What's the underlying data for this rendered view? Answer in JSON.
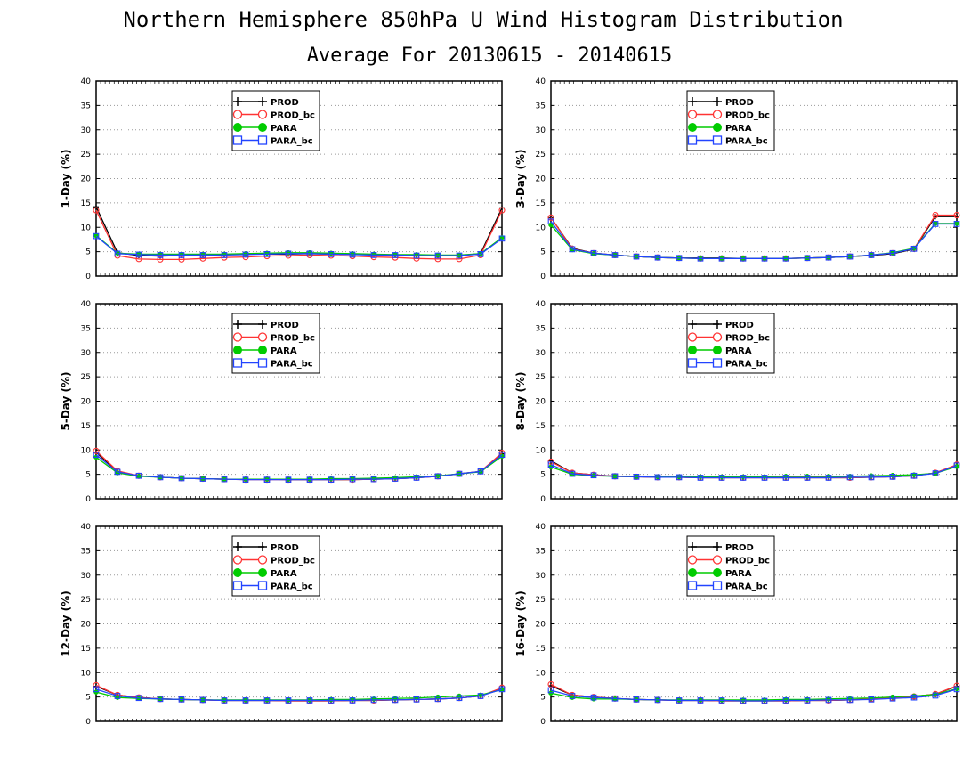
{
  "figure": {
    "title": "Northern Hemisphere 850hPa U Wind Histogram Distribution",
    "subtitle": "Average For 20130615 - 20140615"
  },
  "chart_data": [
    {
      "type": "line",
      "ylabel": "1-Day (%)",
      "ylim": [
        0,
        40
      ],
      "yticks": [
        0,
        5,
        10,
        15,
        20,
        25,
        30,
        35,
        40
      ],
      "grid": true,
      "legend": "top-left inset",
      "series": [
        {
          "name": "PROD",
          "color": "#000000",
          "marker": "plus",
          "values": [
            14.2,
            4.8,
            4.2,
            4.1,
            4.2,
            4.3,
            4.4,
            4.5,
            4.5,
            4.5,
            4.6,
            4.5,
            4.5,
            4.4,
            4.3,
            4.3,
            4.2,
            4.2,
            4.6,
            14.0
          ]
        },
        {
          "name": "PROD_bc",
          "color": "#ff3333",
          "marker": "circle",
          "values": [
            13.5,
            4.2,
            3.5,
            3.4,
            3.4,
            3.6,
            3.8,
            3.9,
            4.1,
            4.2,
            4.3,
            4.2,
            4.1,
            3.9,
            3.8,
            3.6,
            3.5,
            3.5,
            4.3,
            13.5
          ]
        },
        {
          "name": "PARA",
          "color": "#00cc00",
          "marker": "dot",
          "values": [
            8.3,
            4.7,
            4.5,
            4.5,
            4.5,
            4.5,
            4.5,
            4.6,
            4.7,
            4.8,
            4.8,
            4.7,
            4.6,
            4.5,
            4.4,
            4.4,
            4.3,
            4.3,
            4.6,
            7.9
          ]
        },
        {
          "name": "PARA_bc",
          "color": "#2244ff",
          "marker": "square",
          "values": [
            8.2,
            4.6,
            4.4,
            4.3,
            4.3,
            4.3,
            4.3,
            4.4,
            4.5,
            4.6,
            4.6,
            4.5,
            4.4,
            4.3,
            4.3,
            4.2,
            4.2,
            4.2,
            4.5,
            7.7
          ]
        }
      ]
    },
    {
      "type": "line",
      "ylabel": "3-Day (%)",
      "ylim": [
        0,
        40
      ],
      "yticks": [
        0,
        5,
        10,
        15,
        20,
        25,
        30,
        35,
        40
      ],
      "grid": true,
      "legend": "top-left inset",
      "series": [
        {
          "name": "PROD",
          "color": "#000000",
          "marker": "plus",
          "values": [
            12.0,
            5.7,
            4.7,
            4.3,
            4.0,
            3.8,
            3.7,
            3.7,
            3.7,
            3.6,
            3.6,
            3.6,
            3.7,
            3.8,
            4.0,
            4.2,
            4.6,
            5.5,
            12.2,
            12.2
          ]
        },
        {
          "name": "PROD_bc",
          "color": "#ff3333",
          "marker": "circle",
          "values": [
            12.0,
            5.6,
            4.7,
            4.3,
            4.0,
            3.8,
            3.7,
            3.6,
            3.6,
            3.6,
            3.6,
            3.6,
            3.7,
            3.8,
            4.0,
            4.3,
            4.7,
            5.6,
            12.5,
            12.5
          ]
        },
        {
          "name": "PARA",
          "color": "#00cc00",
          "marker": "dot",
          "values": [
            10.5,
            5.4,
            4.6,
            4.3,
            4.0,
            3.8,
            3.7,
            3.6,
            3.6,
            3.6,
            3.6,
            3.6,
            3.7,
            3.8,
            4.0,
            4.3,
            4.8,
            5.7,
            10.8,
            10.8
          ]
        },
        {
          "name": "PARA_bc",
          "color": "#2244ff",
          "marker": "square",
          "values": [
            11.2,
            5.5,
            4.7,
            4.3,
            4.0,
            3.8,
            3.7,
            3.6,
            3.6,
            3.6,
            3.6,
            3.6,
            3.7,
            3.8,
            4.0,
            4.3,
            4.7,
            5.6,
            10.7,
            10.7
          ]
        }
      ]
    },
    {
      "type": "line",
      "ylabel": "5-Day (%)",
      "ylim": [
        0,
        40
      ],
      "yticks": [
        0,
        5,
        10,
        15,
        20,
        25,
        30,
        35,
        40
      ],
      "grid": true,
      "legend": "top-left inset",
      "series": [
        {
          "name": "PROD",
          "color": "#000000",
          "marker": "plus",
          "values": [
            9.5,
            5.6,
            4.7,
            4.4,
            4.2,
            4.1,
            4.0,
            4.0,
            4.0,
            3.9,
            3.9,
            3.9,
            3.9,
            4.0,
            4.1,
            4.3,
            4.6,
            5.1,
            5.6,
            9.2
          ]
        },
        {
          "name": "PROD_bc",
          "color": "#ff3333",
          "marker": "circle",
          "values": [
            9.8,
            5.7,
            4.7,
            4.4,
            4.2,
            4.1,
            4.0,
            3.9,
            3.9,
            3.9,
            3.9,
            3.9,
            3.9,
            4.0,
            4.1,
            4.3,
            4.6,
            5.1,
            5.6,
            9.4
          ]
        },
        {
          "name": "PARA",
          "color": "#00cc00",
          "marker": "dot",
          "values": [
            8.5,
            5.3,
            4.6,
            4.4,
            4.2,
            4.1,
            4.0,
            4.0,
            4.0,
            4.0,
            4.0,
            4.1,
            4.1,
            4.2,
            4.3,
            4.5,
            4.7,
            5.1,
            5.5,
            8.7
          ]
        },
        {
          "name": "PARA_bc",
          "color": "#2244ff",
          "marker": "square",
          "values": [
            9.0,
            5.5,
            4.7,
            4.4,
            4.2,
            4.1,
            4.0,
            3.9,
            3.9,
            3.9,
            3.9,
            3.9,
            4.0,
            4.0,
            4.1,
            4.3,
            4.6,
            5.1,
            5.6,
            9.0
          ]
        }
      ]
    },
    {
      "type": "line",
      "ylabel": "8-Day (%)",
      "ylim": [
        0,
        40
      ],
      "yticks": [
        0,
        5,
        10,
        15,
        20,
        25,
        30,
        35,
        40
      ],
      "grid": true,
      "legend": "top-left inset",
      "series": [
        {
          "name": "PROD",
          "color": "#000000",
          "marker": "plus",
          "values": [
            7.8,
            5.3,
            4.9,
            4.6,
            4.5,
            4.4,
            4.4,
            4.3,
            4.3,
            4.3,
            4.3,
            4.3,
            4.3,
            4.3,
            4.3,
            4.4,
            4.5,
            4.7,
            5.3,
            6.9
          ]
        },
        {
          "name": "PROD_bc",
          "color": "#ff3333",
          "marker": "circle",
          "values": [
            7.6,
            5.3,
            4.9,
            4.6,
            4.5,
            4.4,
            4.4,
            4.3,
            4.3,
            4.3,
            4.3,
            4.3,
            4.3,
            4.3,
            4.3,
            4.4,
            4.5,
            4.7,
            5.3,
            7.0
          ]
        },
        {
          "name": "PARA",
          "color": "#00cc00",
          "marker": "dot",
          "values": [
            6.5,
            5.0,
            4.7,
            4.6,
            4.5,
            4.5,
            4.5,
            4.5,
            4.5,
            4.5,
            4.5,
            4.6,
            4.6,
            4.6,
            4.6,
            4.7,
            4.8,
            4.9,
            5.2,
            6.6
          ]
        },
        {
          "name": "PARA_bc",
          "color": "#2244ff",
          "marker": "square",
          "values": [
            7.0,
            5.1,
            4.8,
            4.6,
            4.5,
            4.4,
            4.4,
            4.3,
            4.3,
            4.3,
            4.3,
            4.3,
            4.3,
            4.3,
            4.4,
            4.4,
            4.5,
            4.7,
            5.2,
            6.8
          ]
        }
      ]
    },
    {
      "type": "line",
      "ylabel": "12-Day (%)",
      "ylim": [
        0,
        40
      ],
      "yticks": [
        0,
        5,
        10,
        15,
        20,
        25,
        30,
        35,
        40
      ],
      "grid": true,
      "legend": "top-left inset",
      "series": [
        {
          "name": "PROD",
          "color": "#000000",
          "marker": "plus",
          "values": [
            7.2,
            5.4,
            4.9,
            4.6,
            4.5,
            4.4,
            4.3,
            4.3,
            4.3,
            4.2,
            4.2,
            4.2,
            4.3,
            4.3,
            4.4,
            4.5,
            4.6,
            4.8,
            5.2,
            6.8
          ]
        },
        {
          "name": "PROD_bc",
          "color": "#ff3333",
          "marker": "circle",
          "values": [
            7.4,
            5.4,
            4.9,
            4.6,
            4.5,
            4.4,
            4.3,
            4.3,
            4.3,
            4.2,
            4.2,
            4.2,
            4.3,
            4.3,
            4.4,
            4.5,
            4.6,
            4.8,
            5.2,
            6.9
          ]
        },
        {
          "name": "PARA",
          "color": "#00cc00",
          "marker": "dot",
          "values": [
            6.0,
            4.9,
            4.7,
            4.6,
            4.5,
            4.4,
            4.4,
            4.4,
            4.4,
            4.4,
            4.4,
            4.5,
            4.5,
            4.6,
            4.7,
            4.8,
            5.0,
            5.2,
            5.4,
            6.5
          ]
        },
        {
          "name": "PARA_bc",
          "color": "#2244ff",
          "marker": "square",
          "values": [
            6.6,
            5.2,
            4.8,
            4.6,
            4.5,
            4.4,
            4.3,
            4.3,
            4.3,
            4.3,
            4.3,
            4.3,
            4.3,
            4.4,
            4.4,
            4.5,
            4.6,
            4.8,
            5.2,
            6.6
          ]
        }
      ]
    },
    {
      "type": "line",
      "ylabel": "16-Day (%)",
      "ylim": [
        0,
        40
      ],
      "yticks": [
        0,
        5,
        10,
        15,
        20,
        25,
        30,
        35,
        40
      ],
      "grid": true,
      "legend": "top-left inset",
      "series": [
        {
          "name": "PROD",
          "color": "#000000",
          "marker": "plus",
          "values": [
            7.3,
            5.4,
            5.0,
            4.7,
            4.5,
            4.4,
            4.3,
            4.3,
            4.2,
            4.2,
            4.2,
            4.2,
            4.3,
            4.3,
            4.4,
            4.6,
            4.8,
            5.1,
            5.6,
            7.2
          ]
        },
        {
          "name": "PROD_bc",
          "color": "#ff3333",
          "marker": "circle",
          "values": [
            7.6,
            5.4,
            5.0,
            4.7,
            4.5,
            4.4,
            4.3,
            4.3,
            4.2,
            4.2,
            4.2,
            4.2,
            4.3,
            4.3,
            4.4,
            4.6,
            4.8,
            5.1,
            5.6,
            7.3
          ]
        },
        {
          "name": "PARA",
          "color": "#00cc00",
          "marker": "dot",
          "values": [
            5.8,
            4.9,
            4.6,
            4.6,
            4.5,
            4.4,
            4.4,
            4.4,
            4.4,
            4.4,
            4.4,
            4.5,
            4.5,
            4.6,
            4.7,
            4.8,
            5.0,
            5.2,
            5.5,
            6.7
          ]
        },
        {
          "name": "PARA_bc",
          "color": "#2244ff",
          "marker": "square",
          "values": [
            6.4,
            5.2,
            4.9,
            4.7,
            4.5,
            4.4,
            4.3,
            4.3,
            4.3,
            4.2,
            4.2,
            4.3,
            4.3,
            4.4,
            4.4,
            4.5,
            4.7,
            4.9,
            5.3,
            6.6
          ]
        }
      ]
    }
  ]
}
